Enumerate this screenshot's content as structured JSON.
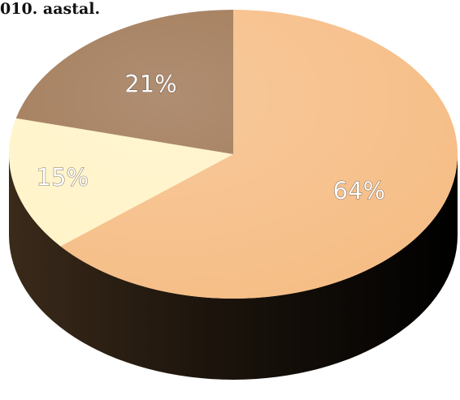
{
  "title": "010. aastal.",
  "chart_data": {
    "type": "pie",
    "title": "010. aastal.",
    "slices": [
      {
        "label": "64%",
        "value": 64,
        "color": "#f6bd85"
      },
      {
        "label": "15%",
        "value": 15,
        "color": "#fff3c6"
      },
      {
        "label": "21%",
        "value": 21,
        "color": "#9e7552"
      }
    ],
    "start_angle_deg": 0,
    "direction": "clockwise",
    "style": "3d-tilted",
    "legend": "none"
  }
}
